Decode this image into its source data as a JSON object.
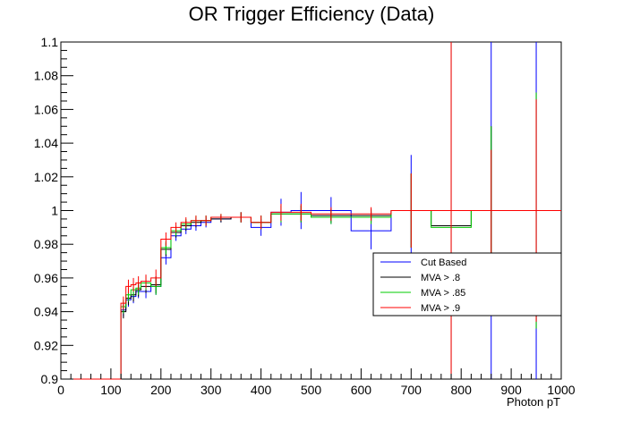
{
  "chart_data": {
    "type": "line",
    "title": "OR Trigger Efficiency (Data)",
    "xlabel": "Photon pT",
    "ylabel": "",
    "xlim": [
      0,
      1000
    ],
    "ylim": [
      0.9,
      1.1
    ],
    "x_tick_labels": [
      "0",
      "100",
      "200",
      "300",
      "400",
      "500",
      "600",
      "700",
      "800",
      "900",
      "1000"
    ],
    "y_tick_labels": [
      "0.9",
      "0.92",
      "0.94",
      "0.96",
      "0.98",
      "1",
      "1.02",
      "1.04",
      "1.06",
      "1.08",
      "1.1"
    ],
    "legend_position": "right",
    "series": [
      {
        "name": "Cut Based",
        "color": "#0000ff",
        "bins": [
          {
            "x0": 120,
            "x1": 130,
            "y": 0.941,
            "err": 0.004
          },
          {
            "x0": 130,
            "x1": 140,
            "y": 0.947,
            "err": 0.004
          },
          {
            "x0": 140,
            "x1": 150,
            "y": 0.949,
            "err": 0.004
          },
          {
            "x0": 150,
            "x1": 160,
            "y": 0.952,
            "err": 0.004
          },
          {
            "x0": 160,
            "x1": 180,
            "y": 0.952,
            "err": 0.004
          },
          {
            "x0": 180,
            "x1": 200,
            "y": 0.955,
            "err": 0.005
          },
          {
            "x0": 200,
            "x1": 220,
            "y": 0.972,
            "err": 0.004
          },
          {
            "x0": 220,
            "x1": 240,
            "y": 0.985,
            "err": 0.003
          },
          {
            "x0": 240,
            "x1": 260,
            "y": 0.989,
            "err": 0.003
          },
          {
            "x0": 260,
            "x1": 280,
            "y": 0.991,
            "err": 0.003
          },
          {
            "x0": 280,
            "x1": 300,
            "y": 0.993,
            "err": 0.003
          },
          {
            "x0": 300,
            "x1": 340,
            "y": 0.995,
            "err": 0.002
          },
          {
            "x0": 340,
            "x1": 380,
            "y": 0.996,
            "err": 0.003
          },
          {
            "x0": 380,
            "x1": 420,
            "y": 0.99,
            "err": 0.005
          },
          {
            "x0": 420,
            "x1": 460,
            "y": 0.999,
            "err": 0.008
          },
          {
            "x0": 460,
            "x1": 500,
            "y": 1.0,
            "err": 0.011
          },
          {
            "x0": 500,
            "x1": 580,
            "y": 1.0,
            "err": 0.008
          },
          {
            "x0": 580,
            "x1": 660,
            "y": 0.988,
            "err": 0.011
          },
          {
            "x0": 660,
            "x1": 740,
            "y": 1.0,
            "err": 0.033
          },
          {
            "x0": 740,
            "x1": 820,
            "y": 1.0,
            "err": 0.25
          },
          {
            "x0": 820,
            "x1": 900,
            "y": 1.0,
            "err": 0.25
          },
          {
            "x0": 900,
            "x1": 1000,
            "y": 1.0,
            "err": 0.25
          }
        ]
      },
      {
        "name": "MVA > .8",
        "color": "#000000",
        "bins": [
          {
            "x0": 120,
            "x1": 130,
            "y": 0.94,
            "err": 0.004
          },
          {
            "x0": 130,
            "x1": 140,
            "y": 0.948,
            "err": 0.004
          },
          {
            "x0": 140,
            "x1": 150,
            "y": 0.95,
            "err": 0.004
          },
          {
            "x0": 150,
            "x1": 160,
            "y": 0.953,
            "err": 0.004
          },
          {
            "x0": 160,
            "x1": 180,
            "y": 0.955,
            "err": 0.004
          },
          {
            "x0": 180,
            "x1": 200,
            "y": 0.956,
            "err": 0.005
          },
          {
            "x0": 200,
            "x1": 220,
            "y": 0.977,
            "err": 0.004
          },
          {
            "x0": 220,
            "x1": 240,
            "y": 0.987,
            "err": 0.003
          },
          {
            "x0": 240,
            "x1": 260,
            "y": 0.991,
            "err": 0.003
          },
          {
            "x0": 260,
            "x1": 280,
            "y": 0.993,
            "err": 0.003
          },
          {
            "x0": 280,
            "x1": 300,
            "y": 0.994,
            "err": 0.003
          },
          {
            "x0": 300,
            "x1": 340,
            "y": 0.995,
            "err": 0.002
          },
          {
            "x0": 340,
            "x1": 380,
            "y": 0.996,
            "err": 0.003
          },
          {
            "x0": 380,
            "x1": 420,
            "y": 0.993,
            "err": 0.004
          },
          {
            "x0": 420,
            "x1": 460,
            "y": 0.998,
            "err": 0.005
          },
          {
            "x0": 460,
            "x1": 500,
            "y": 0.998,
            "err": 0.005
          },
          {
            "x0": 500,
            "x1": 580,
            "y": 0.997,
            "err": 0.004
          },
          {
            "x0": 580,
            "x1": 660,
            "y": 0.997,
            "err": 0.004
          },
          {
            "x0": 660,
            "x1": 740,
            "y": 1.0,
            "err": 0.022
          },
          {
            "x0": 740,
            "x1": 820,
            "y": 0.991,
            "err": 0.25
          },
          {
            "x0": 820,
            "x1": 900,
            "y": 1.0,
            "err": 0.05
          },
          {
            "x0": 900,
            "x1": 1000,
            "y": 1.0,
            "err": 0.07
          }
        ]
      },
      {
        "name": "MVA > .85",
        "color": "#00cc00",
        "bins": [
          {
            "x0": 120,
            "x1": 130,
            "y": 0.943,
            "err": 0.004
          },
          {
            "x0": 130,
            "x1": 140,
            "y": 0.95,
            "err": 0.004
          },
          {
            "x0": 140,
            "x1": 150,
            "y": 0.953,
            "err": 0.004
          },
          {
            "x0": 150,
            "x1": 160,
            "y": 0.954,
            "err": 0.004
          },
          {
            "x0": 160,
            "x1": 180,
            "y": 0.957,
            "err": 0.004
          },
          {
            "x0": 180,
            "x1": 200,
            "y": 0.955,
            "err": 0.005
          },
          {
            "x0": 200,
            "x1": 220,
            "y": 0.978,
            "err": 0.004
          },
          {
            "x0": 220,
            "x1": 240,
            "y": 0.988,
            "err": 0.003
          },
          {
            "x0": 240,
            "x1": 260,
            "y": 0.992,
            "err": 0.003
          },
          {
            "x0": 260,
            "x1": 280,
            "y": 0.994,
            "err": 0.003
          },
          {
            "x0": 280,
            "x1": 300,
            "y": 0.994,
            "err": 0.003
          },
          {
            "x0": 300,
            "x1": 340,
            "y": 0.996,
            "err": 0.002
          },
          {
            "x0": 340,
            "x1": 380,
            "y": 0.996,
            "err": 0.003
          },
          {
            "x0": 380,
            "x1": 420,
            "y": 0.993,
            "err": 0.004
          },
          {
            "x0": 420,
            "x1": 460,
            "y": 0.998,
            "err": 0.005
          },
          {
            "x0": 460,
            "x1": 500,
            "y": 0.998,
            "err": 0.005
          },
          {
            "x0": 500,
            "x1": 580,
            "y": 0.996,
            "err": 0.004
          },
          {
            "x0": 580,
            "x1": 660,
            "y": 0.996,
            "err": 0.004
          },
          {
            "x0": 660,
            "x1": 740,
            "y": 1.0,
            "err": 0.022
          },
          {
            "x0": 740,
            "x1": 820,
            "y": 0.99,
            "err": 0.25
          },
          {
            "x0": 820,
            "x1": 900,
            "y": 1.0,
            "err": 0.05
          },
          {
            "x0": 900,
            "x1": 1000,
            "y": 1.0,
            "err": 0.07
          }
        ]
      },
      {
        "name": "MVA > .9",
        "color": "#ff0000",
        "bins": [
          {
            "x0": 0,
            "x1": 120,
            "y": 0.9,
            "err": 0.0
          },
          {
            "x0": 120,
            "x1": 130,
            "y": 0.945,
            "err": 0.004
          },
          {
            "x0": 130,
            "x1": 140,
            "y": 0.955,
            "err": 0.004
          },
          {
            "x0": 140,
            "x1": 150,
            "y": 0.956,
            "err": 0.004
          },
          {
            "x0": 150,
            "x1": 160,
            "y": 0.957,
            "err": 0.004
          },
          {
            "x0": 160,
            "x1": 180,
            "y": 0.958,
            "err": 0.004
          },
          {
            "x0": 180,
            "x1": 200,
            "y": 0.96,
            "err": 0.005
          },
          {
            "x0": 200,
            "x1": 220,
            "y": 0.983,
            "err": 0.004
          },
          {
            "x0": 220,
            "x1": 240,
            "y": 0.99,
            "err": 0.003
          },
          {
            "x0": 240,
            "x1": 260,
            "y": 0.993,
            "err": 0.003
          },
          {
            "x0": 260,
            "x1": 280,
            "y": 0.994,
            "err": 0.003
          },
          {
            "x0": 280,
            "x1": 300,
            "y": 0.994,
            "err": 0.003
          },
          {
            "x0": 300,
            "x1": 340,
            "y": 0.996,
            "err": 0.002
          },
          {
            "x0": 340,
            "x1": 380,
            "y": 0.996,
            "err": 0.003
          },
          {
            "x0": 380,
            "x1": 420,
            "y": 0.993,
            "err": 0.004
          },
          {
            "x0": 420,
            "x1": 460,
            "y": 0.999,
            "err": 0.005
          },
          {
            "x0": 460,
            "x1": 500,
            "y": 0.999,
            "err": 0.005
          },
          {
            "x0": 500,
            "x1": 580,
            "y": 0.998,
            "err": 0.004
          },
          {
            "x0": 580,
            "x1": 660,
            "y": 0.998,
            "err": 0.004
          },
          {
            "x0": 660,
            "x1": 740,
            "y": 1.0,
            "err": 0.022
          },
          {
            "x0": 740,
            "x1": 820,
            "y": 1.0,
            "err": 0.25
          },
          {
            "x0": 820,
            "x1": 900,
            "y": 1.0,
            "err": 0.036
          },
          {
            "x0": 900,
            "x1": 1000,
            "y": 1.0,
            "err": 0.066
          }
        ]
      }
    ]
  }
}
